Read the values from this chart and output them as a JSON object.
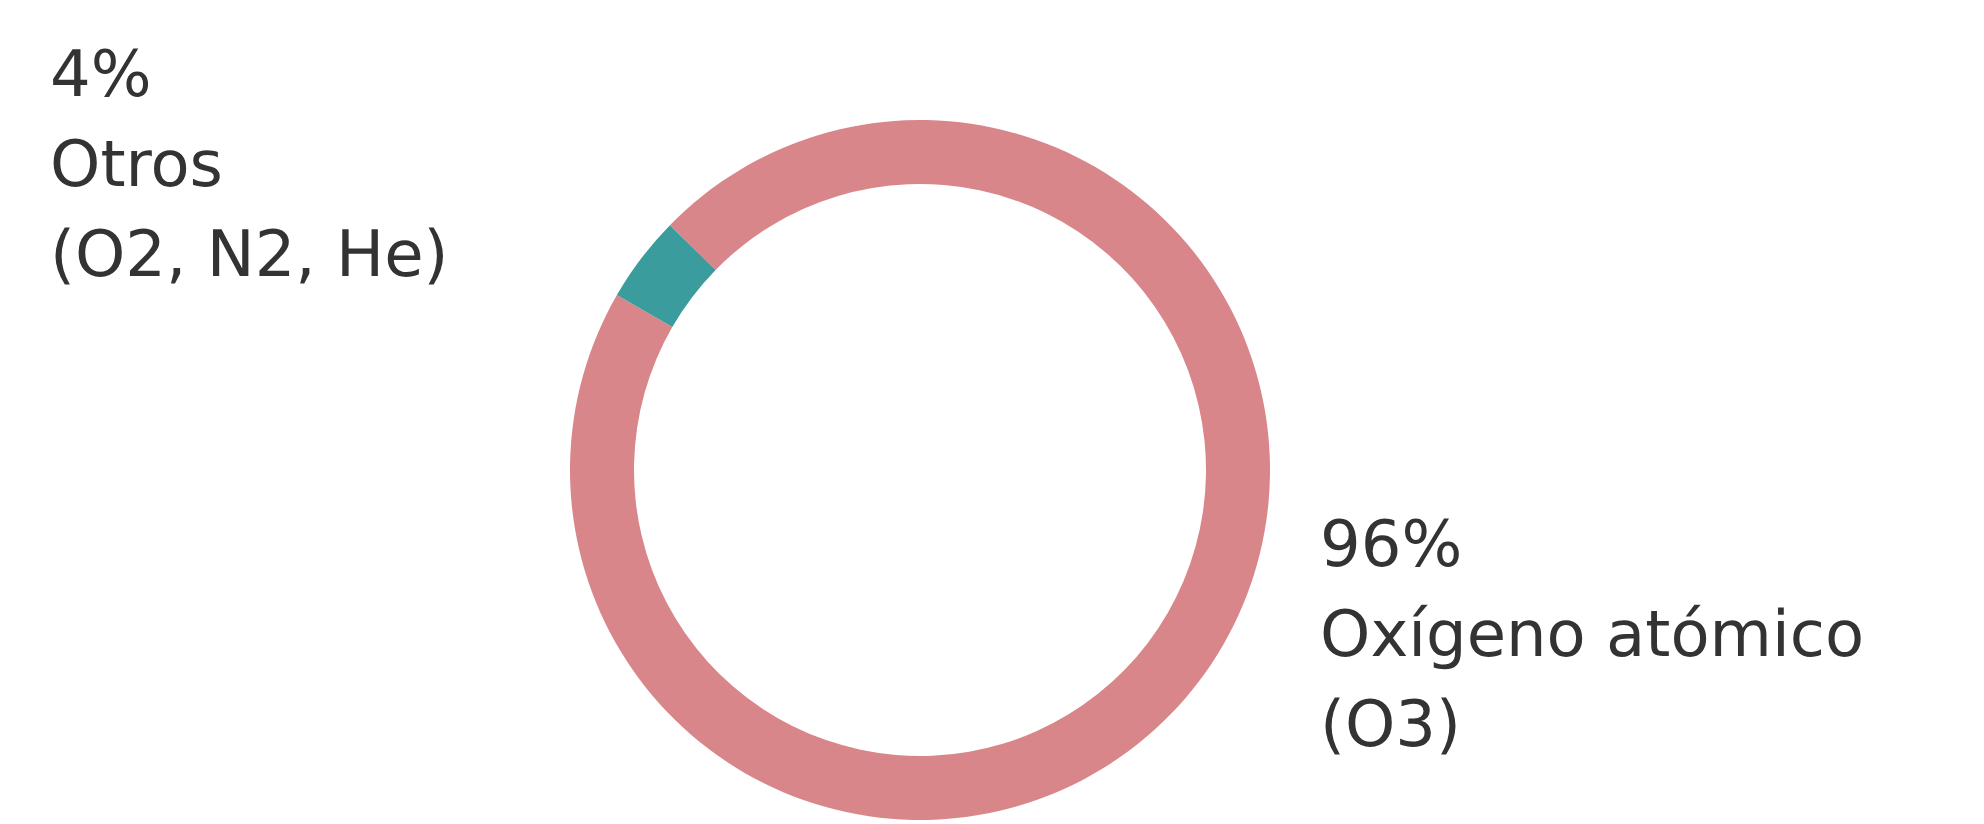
{
  "chart_data": {
    "type": "donut",
    "categories": [
      "Oxígeno atómico (O3)",
      "Otros (O2, N2, He)"
    ],
    "values": [
      96,
      4
    ],
    "colors": [
      "#d9868a",
      "#3a9c9c"
    ],
    "value_labels": [
      "96%",
      "4%"
    ]
  }
}
